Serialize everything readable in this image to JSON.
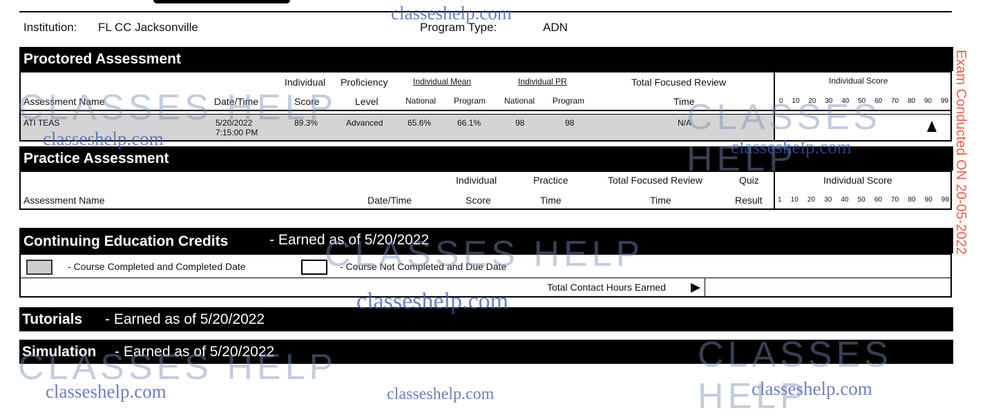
{
  "header": {
    "institution_label": "Institution:",
    "institution": "FL CC Jacksonville",
    "program_type_label": "Program Type:",
    "program_type": "ADN"
  },
  "proctored": {
    "title": "Proctored Assessment",
    "headers": {
      "name": "Assessment Name",
      "datetime": "Date/Time",
      "score_top": "Individual",
      "score_bottom": "Score",
      "prof_top": "Proficiency",
      "prof_bottom": "Level",
      "mean": "Individual Mean",
      "national": "National",
      "program": "Program",
      "pr": "Individual PR",
      "pr_national": "National",
      "pr_program": "Program",
      "review_top": "Total Focused Review",
      "review_bottom": "Time",
      "ind_score": "Individual Score"
    },
    "scale": [
      "0",
      "10",
      "20",
      "30",
      "40",
      "50",
      "60",
      "70",
      "80",
      "90",
      "99"
    ],
    "row": {
      "name": "ATI TEAS",
      "date": "5/20/2022",
      "time": "7:15:00 PM",
      "score": "89.3%",
      "level": "Advanced",
      "mean_national": "65.6%",
      "mean_program": "66.1%",
      "pr_national": "98",
      "pr_program": "98",
      "review_time": "N/A",
      "score_marker_value": 89.3
    }
  },
  "practice": {
    "title": "Practice Assessment",
    "headers": {
      "name": "Assessment Name",
      "datetime": "Date/Time",
      "score_top": "Individual",
      "score_bottom": "Score",
      "practice_top": "Practice",
      "practice_bottom": "Time",
      "review_top": "Total Focused Review",
      "review_bottom": "Time",
      "quiz_top": "Quiz",
      "quiz_bottom": "Result",
      "ind_score": "Individual Score"
    },
    "scale": [
      "1",
      "10",
      "20",
      "30",
      "40",
      "50",
      "60",
      "70",
      "80",
      "90",
      "99"
    ]
  },
  "ce": {
    "title": "Continuing Education Credits",
    "earned": "- Earned as of 5/20/2022",
    "completed": "- Course Completed and Completed Date",
    "not_completed": "- Course Not Completed and Due Date",
    "total": "Total Contact Hours Earned"
  },
  "tutorials": {
    "title": "Tutorials",
    "earned": "- Earned as of 5/20/2022"
  },
  "simulation": {
    "title": "Simulation",
    "earned": "- Earned as of 5/20/2022"
  },
  "stamp": "Exam Conducted ON 20-05-2022",
  "watermarks": [
    "classeshelp.com",
    "CLASSES HELP"
  ]
}
